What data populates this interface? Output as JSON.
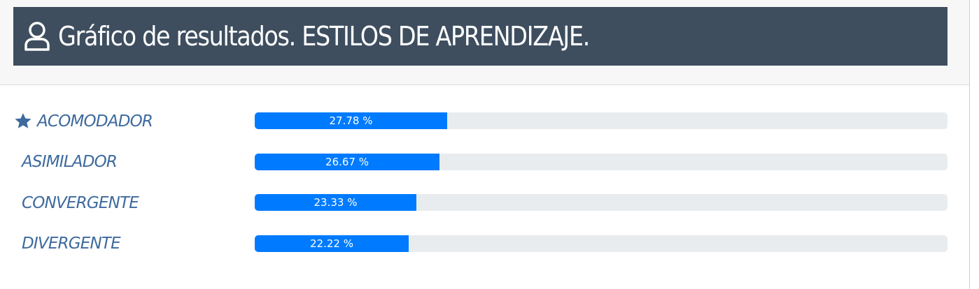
{
  "header": {
    "title": "Gráfico de resultados. ESTILOS DE APRENDIZAJE.",
    "icon": "user-icon"
  },
  "colors": {
    "header_bg": "#3e4e5f",
    "label": "#3d6a9e",
    "bar_fill": "#007bff",
    "bar_track": "#e9ecef"
  },
  "chart_data": {
    "type": "bar",
    "orientation": "horizontal",
    "title": "Gráfico de resultados. ESTILOS DE APRENDIZAJE.",
    "xlim": [
      0,
      100
    ],
    "categories": [
      "ACOMODADOR",
      "ASIMILADOR",
      "CONVERGENTE",
      "DIVERGENTE"
    ],
    "values": [
      27.78,
      26.67,
      23.33,
      22.22
    ],
    "value_labels": [
      "27.78 %",
      "26.67 %",
      "23.33 %",
      "22.22 %"
    ],
    "highlighted_category": "ACOMODADOR",
    "highlight_icon": "star-icon"
  }
}
